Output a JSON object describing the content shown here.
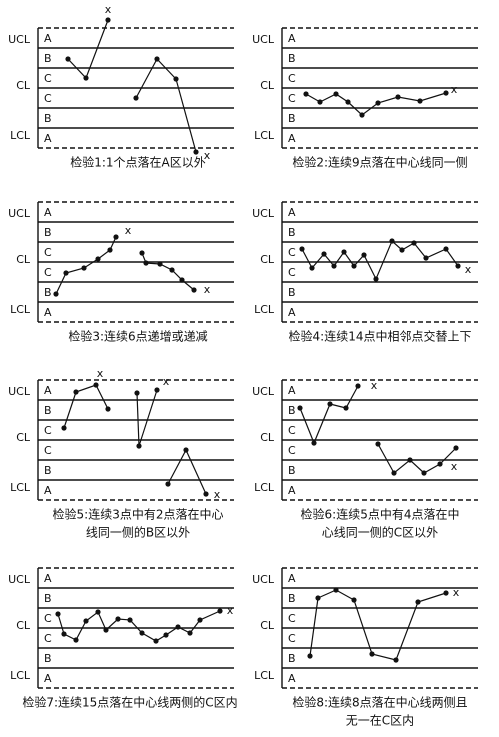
{
  "limit_labels": [
    "UCL",
    "CL",
    "LCL"
  ],
  "zone_letters": [
    "A",
    "B",
    "C",
    "C",
    "B",
    "A"
  ],
  "marker": "x",
  "panels": [
    {
      "caption": [
        "检验1:1个点落在A区以外"
      ]
    },
    {
      "caption": [
        "检验2:连续9点落在中心线同一侧"
      ]
    },
    {
      "caption": [
        "检验3:连续6点递增或递减"
      ]
    },
    {
      "caption": [
        "检验4:连续14点中相邻点交替上下"
      ]
    },
    {
      "caption": [
        "检验5:连续3点中有2点落在中心",
        "线同一侧的B区以外"
      ]
    },
    {
      "caption": [
        "检验6:连续5点中有4点落在中",
        "心线同一侧的C区以外"
      ]
    },
    {
      "caption": [
        "检验7:连续15点落在中心线两侧的C区内"
      ]
    },
    {
      "caption": [
        "检验8:连续8点落在中心线两侧且",
        "无一在C区内"
      ]
    }
  ]
}
